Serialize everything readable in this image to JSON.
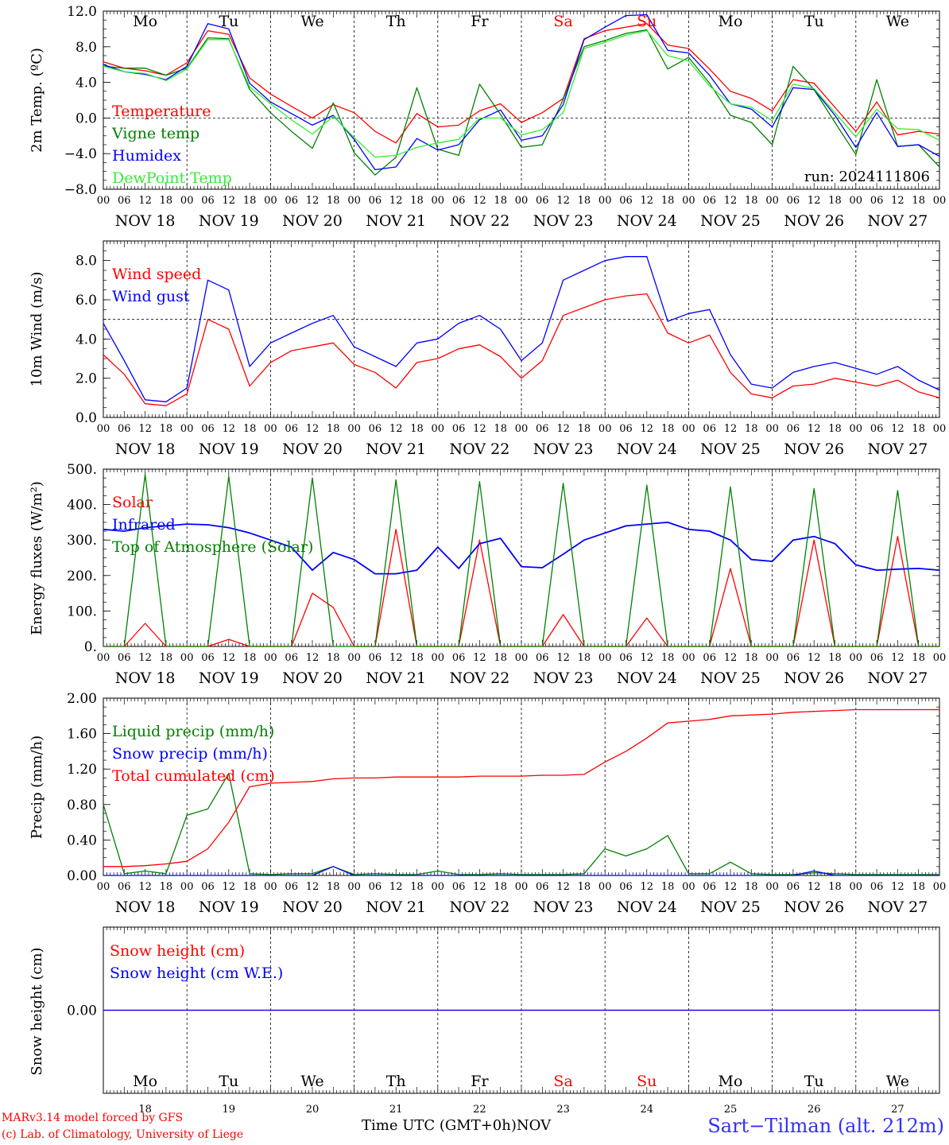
{
  "chart_data": [
    {
      "type": "line",
      "id": "temp",
      "ylabel": "2m Temp. (ºC)",
      "ylim": [
        -8.0,
        12.0
      ],
      "yticks": [
        -8.0,
        -4.0,
        0.0,
        4.0,
        8.0,
        12.0
      ],
      "ytick_labels": [
        "−8.0",
        "−4.0",
        "0.0",
        "4.0",
        "8.0",
        "12.0"
      ],
      "hline": 0,
      "annotation": "run: 2024111806",
      "x_hours": [
        0,
        6,
        12,
        18,
        24,
        30,
        36,
        42,
        48,
        54,
        60,
        66,
        72,
        78,
        84,
        90,
        96,
        102,
        108,
        114,
        120,
        126,
        132,
        138,
        144,
        150,
        156,
        162,
        168,
        174,
        180,
        186,
        192,
        198,
        204,
        210,
        216,
        222,
        228,
        234,
        240
      ],
      "series": [
        {
          "name": "Temperature",
          "color": "#ff0000",
          "values": [
            6.3,
            5.6,
            5.3,
            4.8,
            6.2,
            9.8,
            9.4,
            4.5,
            2.7,
            1.3,
            0.0,
            1.5,
            0.6,
            -1.5,
            -2.8,
            0.5,
            -1.0,
            -0.8,
            0.8,
            1.6,
            -0.5,
            0.6,
            2.2,
            8.9,
            9.8,
            10.2,
            10.6,
            8.2,
            7.8,
            5.5,
            3.0,
            2.2,
            0.8,
            4.3,
            3.9,
            1.2,
            -1.5,
            1.8,
            -1.9,
            -1.5,
            -1.8
          ]
        },
        {
          "name": "Vigne temp",
          "color": "#008000",
          "values": [
            5.8,
            5.6,
            5.6,
            4.8,
            5.6,
            9.0,
            8.9,
            3.2,
            0.6,
            -1.5,
            -3.4,
            1.7,
            -3.9,
            -6.4,
            -4.4,
            3.4,
            -3.5,
            -4.2,
            3.8,
            0.4,
            -3.3,
            -3.0,
            2.1,
            8.0,
            8.7,
            9.5,
            9.9,
            5.5,
            6.8,
            3.9,
            0.3,
            -0.5,
            -3.0,
            5.8,
            3.2,
            -0.5,
            -4.1,
            4.3,
            -3.2,
            -3.0,
            -5.5
          ]
        },
        {
          "name": "Humidex",
          "color": "#0000ff",
          "values": [
            6.0,
            5.2,
            4.9,
            4.3,
            5.8,
            10.6,
            10.0,
            3.9,
            1.8,
            0.5,
            -0.8,
            0.3,
            -2.4,
            -5.8,
            -5.5,
            -2.3,
            -3.6,
            -3.0,
            -0.2,
            0.9,
            -2.5,
            -2.0,
            1.5,
            8.8,
            10.2,
            11.5,
            11.6,
            7.6,
            7.3,
            4.8,
            1.6,
            1.0,
            -1.0,
            3.4,
            3.2,
            0.3,
            -3.3,
            0.6,
            -3.2,
            -3.0,
            -4.3
          ]
        },
        {
          "name": "DewPoint Temp",
          "color": "#33ee33",
          "values": [
            5.8,
            5.2,
            5.0,
            4.2,
            5.5,
            8.8,
            8.8,
            3.5,
            1.6,
            -0.2,
            -1.8,
            0.2,
            -2.2,
            -4.4,
            -4.2,
            -3.3,
            -2.8,
            -2.4,
            0.0,
            0.0,
            -1.9,
            -1.3,
            0.6,
            7.8,
            8.5,
            9.3,
            9.8,
            7.0,
            6.4,
            3.6,
            1.6,
            1.2,
            -0.3,
            3.8,
            3.3,
            0.6,
            -2.1,
            1.0,
            -1.2,
            -1.3,
            -2.5
          ]
        }
      ]
    },
    {
      "type": "line",
      "id": "wind",
      "ylabel": "10m Wind (m/s)",
      "ylim": [
        0.0,
        9.0
      ],
      "yticks": [
        0.0,
        2.0,
        4.0,
        6.0,
        8.0
      ],
      "ytick_labels": [
        "0.0",
        "2.0",
        "4.0",
        "6.0",
        "8.0"
      ],
      "hline": 5,
      "x_hours": [
        0,
        6,
        12,
        18,
        24,
        30,
        36,
        42,
        48,
        54,
        60,
        66,
        72,
        78,
        84,
        90,
        96,
        102,
        108,
        114,
        120,
        126,
        132,
        138,
        144,
        150,
        156,
        162,
        168,
        174,
        180,
        186,
        192,
        198,
        204,
        210,
        216,
        222,
        228,
        234,
        240
      ],
      "series": [
        {
          "name": "Wind speed",
          "color": "#ff0000",
          "values": [
            3.2,
            2.2,
            0.7,
            0.6,
            1.2,
            5.0,
            4.5,
            1.6,
            2.8,
            3.4,
            3.6,
            3.8,
            2.7,
            2.3,
            1.5,
            2.8,
            3.0,
            3.5,
            3.7,
            3.1,
            2.0,
            2.9,
            5.2,
            5.6,
            6.0,
            6.2,
            6.3,
            4.3,
            3.8,
            4.2,
            2.3,
            1.2,
            1.0,
            1.6,
            1.7,
            2.0,
            1.8,
            1.6,
            1.9,
            1.3,
            1.0
          ]
        },
        {
          "name": "Wind gust",
          "color": "#0000ff",
          "values": [
            4.8,
            2.9,
            0.9,
            0.8,
            1.5,
            7.0,
            6.5,
            2.6,
            3.8,
            4.3,
            4.8,
            5.2,
            3.6,
            3.1,
            2.6,
            3.8,
            4.0,
            4.8,
            5.2,
            4.5,
            2.9,
            3.8,
            7.0,
            7.5,
            8.0,
            8.2,
            8.2,
            4.9,
            5.3,
            5.5,
            3.2,
            1.7,
            1.5,
            2.3,
            2.6,
            2.8,
            2.5,
            2.2,
            2.6,
            1.9,
            1.4
          ]
        }
      ]
    },
    {
      "type": "line",
      "id": "energy",
      "ylabel": "Energy fluxes (W/m²)",
      "ylim": [
        0,
        500
      ],
      "yticks": [
        0,
        100,
        200,
        300,
        400,
        500
      ],
      "ytick_labels": [
        "0.",
        "100.",
        "200.",
        "300.",
        "400.",
        "500."
      ],
      "x_hours": [
        0,
        6,
        12,
        18,
        24,
        30,
        36,
        42,
        48,
        54,
        60,
        66,
        72,
        78,
        84,
        90,
        96,
        102,
        108,
        114,
        120,
        126,
        132,
        138,
        144,
        150,
        156,
        162,
        168,
        174,
        180,
        186,
        192,
        198,
        204,
        210,
        216,
        222,
        228,
        234,
        240
      ],
      "series": [
        {
          "name": "Solar",
          "color": "#ff0000",
          "values": [
            0,
            0,
            65,
            0,
            0,
            0,
            20,
            0,
            0,
            0,
            150,
            110,
            0,
            0,
            330,
            0,
            0,
            0,
            300,
            0,
            0,
            0,
            90,
            0,
            0,
            0,
            80,
            0,
            0,
            0,
            220,
            0,
            0,
            0,
            300,
            0,
            0,
            0,
            310,
            0,
            0
          ]
        },
        {
          "name": "Infrared",
          "color": "#0000ff",
          "values": [
            330,
            325,
            335,
            340,
            345,
            343,
            335,
            320,
            300,
            280,
            215,
            265,
            245,
            205,
            205,
            215,
            280,
            220,
            290,
            305,
            225,
            222,
            260,
            300,
            320,
            340,
            345,
            350,
            330,
            325,
            300,
            245,
            240,
            300,
            310,
            290,
            230,
            215,
            218,
            220,
            215
          ]
        },
        {
          "name": "Top of Atmosphere (Solar)",
          "color": "#008000",
          "values": [
            0,
            0,
            485,
            0,
            0,
            0,
            480,
            0,
            0,
            0,
            475,
            0,
            0,
            0,
            470,
            0,
            0,
            0,
            465,
            0,
            0,
            0,
            460,
            0,
            0,
            0,
            455,
            0,
            0,
            0,
            450,
            0,
            0,
            0,
            445,
            0,
            0,
            0,
            440,
            0,
            0
          ]
        }
      ]
    },
    {
      "type": "line",
      "id": "precip",
      "ylabel": "Precip (mm/h)",
      "ylim": [
        0.0,
        2.0
      ],
      "yticks": [
        0.0,
        0.4,
        0.8,
        1.2,
        1.6,
        2.0
      ],
      "ytick_labels": [
        "0.00",
        "0.40",
        "0.80",
        "1.20",
        "1.60",
        "2.00"
      ],
      "x_hours": [
        0,
        6,
        12,
        18,
        24,
        30,
        36,
        42,
        48,
        54,
        60,
        66,
        72,
        78,
        84,
        90,
        96,
        102,
        108,
        114,
        120,
        126,
        132,
        138,
        144,
        150,
        156,
        162,
        168,
        174,
        180,
        186,
        192,
        198,
        204,
        210,
        216,
        222,
        228,
        234,
        240
      ],
      "series": [
        {
          "name": "Liquid precip (mm/h)",
          "color": "#008000",
          "values": [
            0.8,
            0.02,
            0.05,
            0.02,
            0.68,
            0.75,
            1.15,
            0.02,
            0.01,
            0.02,
            0.02,
            0.1,
            0.01,
            0.02,
            0.01,
            0.01,
            0.05,
            0.01,
            0.01,
            0.02,
            0.01,
            0.01,
            0.01,
            0.02,
            0.3,
            0.22,
            0.3,
            0.45,
            0.02,
            0.02,
            0.15,
            0.02,
            0.01,
            0.01,
            0.03,
            0.02,
            0.01,
            0.01,
            0.01,
            0.01,
            0.01
          ]
        },
        {
          "name": "Snow precip (mm/h)",
          "color": "#0000ff",
          "values": [
            0.0,
            0.0,
            0.0,
            0.0,
            0.0,
            0.0,
            0.0,
            0.0,
            0.0,
            0.0,
            0.0,
            0.1,
            0.0,
            0.0,
            0.0,
            0.0,
            0.0,
            0.0,
            0.0,
            0.0,
            0.0,
            0.0,
            0.0,
            0.0,
            0.0,
            0.0,
            0.0,
            0.0,
            0.0,
            0.0,
            0.0,
            0.0,
            0.0,
            0.0,
            0.05,
            0.0,
            0.0,
            0.0,
            0.0,
            0.0,
            0.0
          ]
        },
        {
          "name": "Total cumulated (cm)",
          "color": "#ff0000",
          "values": [
            0.1,
            0.1,
            0.11,
            0.13,
            0.16,
            0.3,
            0.6,
            1.0,
            1.04,
            1.05,
            1.06,
            1.09,
            1.1,
            1.1,
            1.11,
            1.11,
            1.11,
            1.11,
            1.12,
            1.12,
            1.12,
            1.13,
            1.13,
            1.14,
            1.28,
            1.4,
            1.55,
            1.72,
            1.74,
            1.76,
            1.8,
            1.81,
            1.82,
            1.84,
            1.85,
            1.86,
            1.87,
            1.87,
            1.87,
            1.87,
            1.87
          ]
        }
      ]
    },
    {
      "type": "line",
      "id": "snow",
      "ylabel": "Snow height (cm)",
      "ylim": [
        -1.0,
        1.0
      ],
      "yticks": [
        0.0
      ],
      "ytick_labels": [
        "0.00"
      ],
      "x_hours": [
        0,
        240
      ],
      "series": [
        {
          "name": "Snow height (cm)",
          "color": "#ff0000",
          "values": [
            0.0,
            0.0
          ]
        },
        {
          "name": "Snow height (cm W.E.)",
          "color": "#0000ff",
          "values": [
            0.0,
            0.0
          ]
        }
      ]
    }
  ],
  "x_axis": {
    "hour_labels": [
      "00",
      "06",
      "12",
      "18"
    ],
    "end_label": "00",
    "date_labels": [
      "NOV 18",
      "NOV 19",
      "NOV 20",
      "NOV 21",
      "NOV 22",
      "NOV 23",
      "NOV 24",
      "NOV 25",
      "NOV 26",
      "NOV 27"
    ],
    "days": [
      {
        "name": "Mo",
        "color": "#000000"
      },
      {
        "name": "Tu",
        "color": "#000000"
      },
      {
        "name": "We",
        "color": "#000000"
      },
      {
        "name": "Th",
        "color": "#000000"
      },
      {
        "name": "Fr",
        "color": "#000000"
      },
      {
        "name": "Sa",
        "color": "#ff0000"
      },
      {
        "name": "Su",
        "color": "#ff0000"
      },
      {
        "name": "Mo",
        "color": "#000000"
      },
      {
        "name": "Tu",
        "color": "#000000"
      },
      {
        "name": "We",
        "color": "#000000"
      }
    ],
    "bottom_day_numbers": [
      "18",
      "19",
      "20",
      "21",
      "22",
      "23",
      "24",
      "25",
      "26",
      "27"
    ],
    "bottom_label": "Time UTC (GMT+0h)",
    "month_label": "NOV"
  },
  "footer": {
    "credit_line1": "MARv3.14 model forced by GFS",
    "credit_line2": "(c) Lab. of Climatology, University of Liege",
    "station": "Sart−Tilman (alt. 212m)"
  }
}
